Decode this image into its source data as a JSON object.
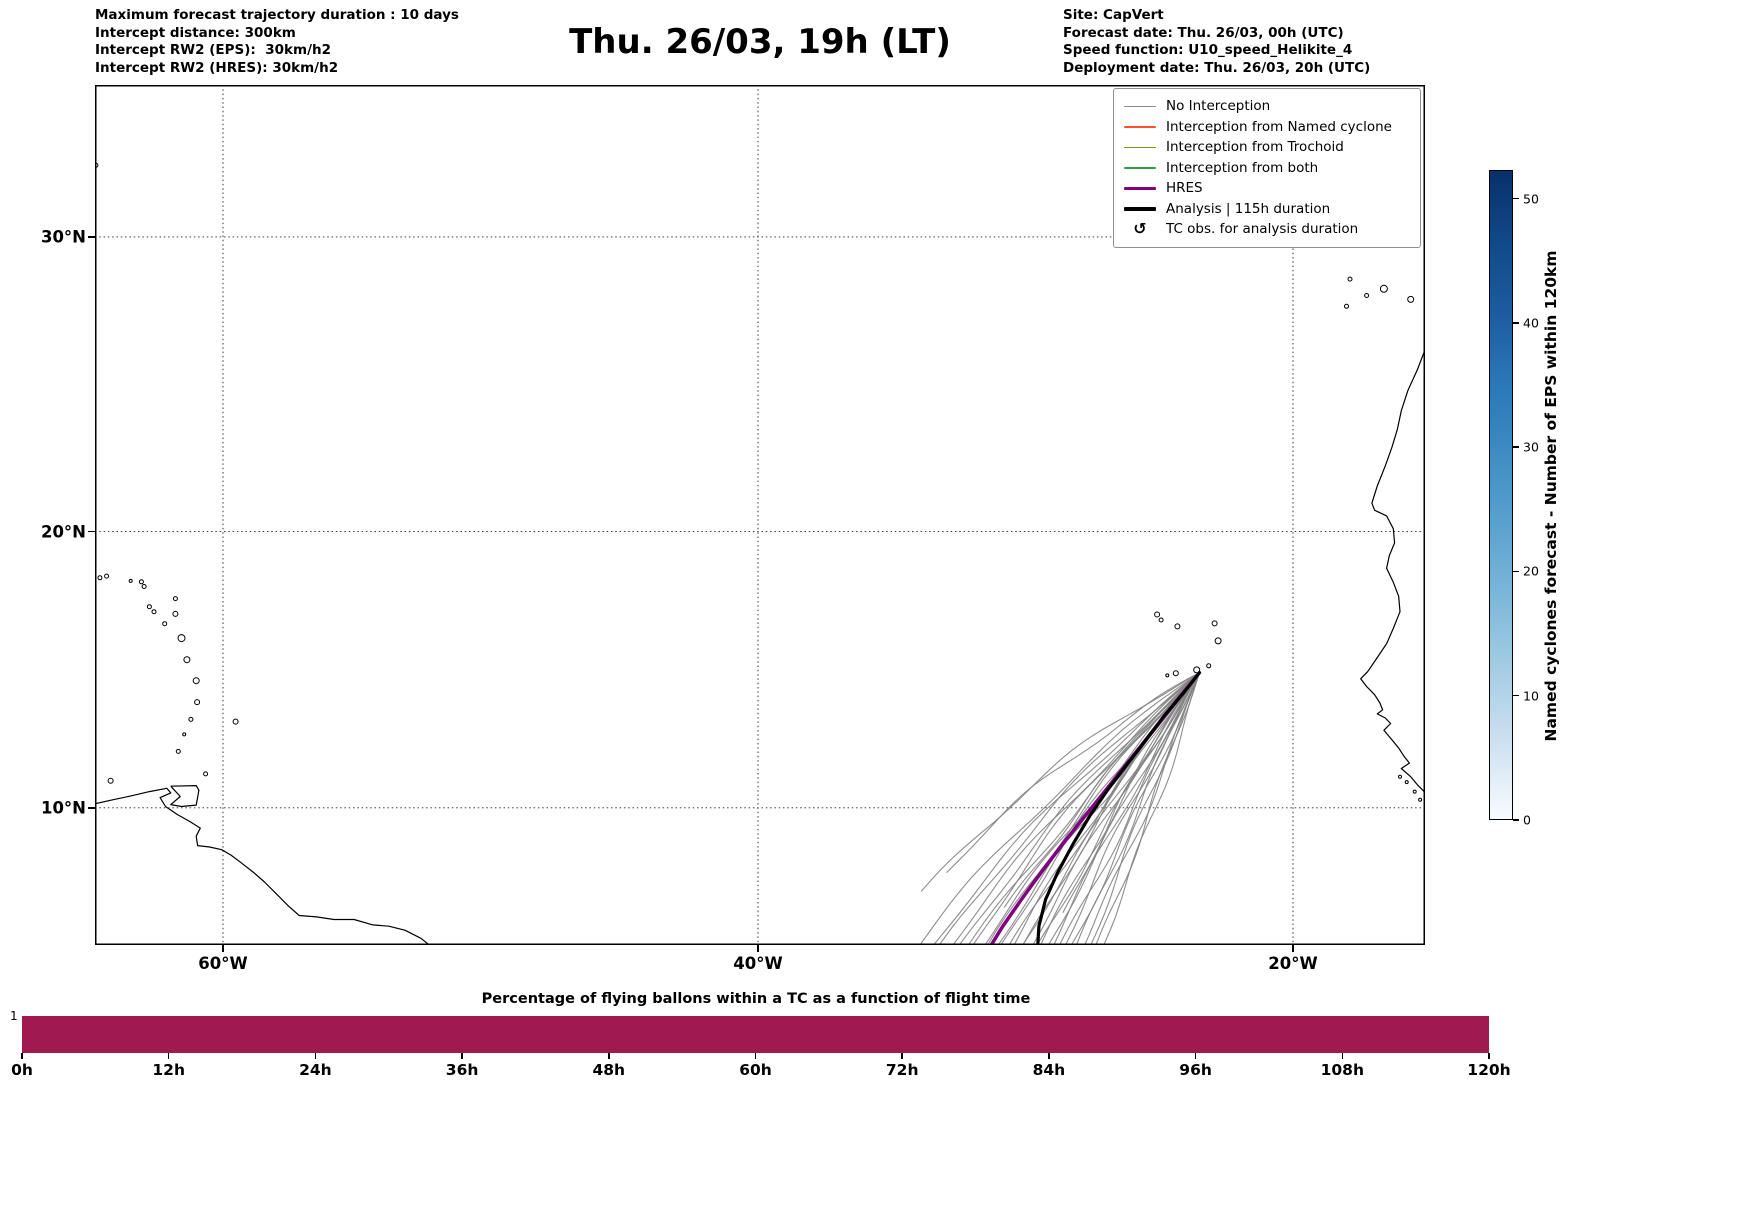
{
  "header": {
    "left_lines": [
      "Maximum forecast trajectory duration : 10 days",
      "Intercept distance: 300km",
      "Intercept RW2 (EPS):  30km/h2",
      "Intercept RW2 (HRES): 30km/h2"
    ],
    "title": "Thu. 26/03, 19h (LT)",
    "right_lines": [
      "Site: CapVert",
      "Forecast date: Thu. 26/03, 00h (UTC)",
      "Speed function: U10_speed_Helikite_4",
      "Deployment date: Thu. 26/03, 20h (UTC)"
    ]
  },
  "map": {
    "x_ticks": [
      {
        "label": "60°W",
        "lon": -60
      },
      {
        "label": "40°W",
        "lon": -40
      },
      {
        "label": "20°W",
        "lon": -20
      }
    ],
    "y_ticks": [
      {
        "label": "30°N",
        "lat": 30
      },
      {
        "label": "20°N",
        "lat": 20
      },
      {
        "label": "10°N",
        "lat": 10
      }
    ],
    "legend": [
      {
        "label": "No Interception",
        "color": "#8c8c8c",
        "lw": 1.5
      },
      {
        "label": "Interception from Named cyclone",
        "color": "#ff4f30",
        "lw": 1.5
      },
      {
        "label": "Interception from Trochoid",
        "color": "#8a8a23",
        "lw": 1.5
      },
      {
        "label": "Interception from both",
        "color": "#2e9e3e",
        "lw": 1.5
      },
      {
        "label": "HRES",
        "color": "#800080",
        "lw": 3.5
      },
      {
        "label": "Analysis | 115h duration",
        "color": "#000000",
        "lw": 3.5
      },
      {
        "label": "TC obs. for analysis duration",
        "symbol": "↺"
      }
    ]
  },
  "chart_data": {
    "type": "map-trajectories",
    "projection": "mercator",
    "map_extent": {
      "lon_min": -64.8,
      "lon_max": -15.1,
      "lat_min": 4.9,
      "lat_max": 34.9
    },
    "site": {
      "name": "CapVert",
      "lon": -23.5,
      "lat": 14.95
    },
    "trajectories": {
      "start": [
        -23.5,
        14.95
      ],
      "ensemble_color": "#828282",
      "n_ensemble": 33,
      "members": [
        [
          -34.6,
          4.0,
          1.35,
          0.0
        ],
        [
          -34.15,
          4.0,
          1.05,
          2.1
        ],
        [
          -33.75,
          4.1,
          1.2,
          4.2
        ],
        [
          -33.4,
          4.0,
          0.85,
          1.3
        ],
        [
          -33.05,
          4.05,
          0.95,
          3.4
        ],
        [
          -32.75,
          4.0,
          0.6,
          5.5
        ],
        [
          -32.45,
          4.15,
          1.0,
          2.6
        ],
        [
          -32.15,
          4.0,
          0.5,
          0.7
        ],
        [
          -31.9,
          4.05,
          0.8,
          4.8
        ],
        [
          -31.65,
          4.0,
          0.45,
          1.9
        ],
        [
          -31.4,
          4.1,
          0.7,
          3.0
        ],
        [
          -31.15,
          4.0,
          0.3,
          5.1
        ],
        [
          -30.9,
          4.05,
          0.62,
          0.2
        ],
        [
          -30.7,
          4.0,
          0.2,
          2.3
        ],
        [
          -30.5,
          4.1,
          0.5,
          4.4
        ],
        [
          -30.25,
          4.0,
          0.38,
          1.5
        ],
        [
          -30.05,
          4.05,
          0.12,
          3.6
        ],
        [
          -29.85,
          4.0,
          0.46,
          5.7
        ],
        [
          -29.6,
          4.1,
          0.08,
          2.8
        ],
        [
          -29.4,
          4.0,
          0.3,
          0.9
        ],
        [
          -29.15,
          4.05,
          -0.12,
          5.0
        ],
        [
          -28.95,
          4.0,
          0.22,
          2.0
        ],
        [
          -28.7,
          4.1,
          -0.2,
          3.1
        ],
        [
          -28.45,
          4.0,
          0.1,
          5.2
        ],
        [
          -28.2,
          4.05,
          -0.3,
          0.3
        ],
        [
          -27.95,
          4.0,
          0.02,
          2.4
        ],
        [
          -27.65,
          4.15,
          -0.16,
          4.5
        ],
        [
          -27.35,
          4.3,
          -0.28,
          1.6
        ],
        [
          -30.8,
          6.3,
          0.42,
          3.7
        ],
        [
          -29.9,
          6.9,
          -0.1,
          5.8
        ],
        [
          -28.6,
          6.1,
          0.3,
          2.9
        ],
        [
          -33.9,
          6.9,
          1.15,
          4.0
        ],
        [
          -32.95,
          7.6,
          0.95,
          1.1
        ]
      ],
      "hres": {
        "label": "HRES",
        "color": "#800080",
        "width": 3.5,
        "points": [
          [
            -23.5,
            14.95
          ],
          [
            -24.25,
            14.05
          ],
          [
            -25.1,
            13.0
          ],
          [
            -25.95,
            11.95
          ],
          [
            -26.8,
            10.9
          ],
          [
            -27.65,
            9.85
          ],
          [
            -28.5,
            8.8
          ],
          [
            -29.35,
            7.7
          ],
          [
            -30.15,
            6.6
          ],
          [
            -30.85,
            5.6
          ],
          [
            -31.4,
            4.7
          ],
          [
            -31.65,
            4.1
          ]
        ]
      },
      "analysis": {
        "label": "Analysis | 115h duration",
        "color": "#000000",
        "width": 3.2,
        "points": [
          [
            -23.5,
            14.95
          ],
          [
            -24.1,
            14.2
          ],
          [
            -24.8,
            13.4
          ],
          [
            -25.5,
            12.5
          ],
          [
            -26.2,
            11.6
          ],
          [
            -26.9,
            10.7
          ],
          [
            -27.6,
            9.7
          ],
          [
            -28.2,
            8.7
          ],
          [
            -28.8,
            7.6
          ],
          [
            -29.25,
            6.6
          ],
          [
            -29.5,
            5.6
          ],
          [
            -29.55,
            4.7
          ],
          [
            -29.55,
            4.2
          ]
        ]
      }
    },
    "geo": {
      "coastlines": [
        [
          [
            -64.8,
            10.15
          ],
          [
            -64.1,
            10.3
          ],
          [
            -63.4,
            10.45
          ],
          [
            -62.75,
            10.6
          ],
          [
            -62.1,
            10.72
          ],
          [
            -61.95,
            10.55
          ],
          [
            -62.35,
            10.38
          ],
          [
            -62.15,
            10.05
          ],
          [
            -61.7,
            9.75
          ],
          [
            -61.25,
            9.5
          ],
          [
            -60.85,
            9.25
          ],
          [
            -61.0,
            8.95
          ],
          [
            -60.95,
            8.6
          ],
          [
            -60.5,
            8.55
          ],
          [
            -60.05,
            8.45
          ],
          [
            -59.7,
            8.25
          ],
          [
            -59.3,
            7.95
          ],
          [
            -58.85,
            7.6
          ],
          [
            -58.45,
            7.25
          ],
          [
            -58.05,
            6.85
          ],
          [
            -57.55,
            6.35
          ],
          [
            -57.15,
            6.0
          ],
          [
            -56.5,
            5.95
          ],
          [
            -55.85,
            5.85
          ],
          [
            -55.1,
            5.85
          ],
          [
            -54.4,
            5.65
          ],
          [
            -53.8,
            5.6
          ],
          [
            -53.2,
            5.45
          ],
          [
            -52.6,
            5.15
          ],
          [
            -52.1,
            4.75
          ],
          [
            -51.7,
            4.35
          ],
          [
            -51.5,
            4.0
          ]
        ],
        [
          [
            -61.95,
            10.8
          ],
          [
            -61.0,
            10.82
          ],
          [
            -60.9,
            10.65
          ],
          [
            -61.0,
            10.1
          ],
          [
            -61.55,
            10.05
          ],
          [
            -61.95,
            10.12
          ],
          [
            -61.6,
            10.42
          ],
          [
            -61.95,
            10.8
          ]
        ],
        [
          [
            -15.05,
            26.3
          ],
          [
            -15.35,
            25.6
          ],
          [
            -15.7,
            24.9
          ],
          [
            -15.95,
            24.2
          ],
          [
            -16.1,
            23.55
          ],
          [
            -16.3,
            22.95
          ],
          [
            -16.55,
            22.3
          ],
          [
            -16.85,
            21.6
          ],
          [
            -17.05,
            21.0
          ],
          [
            -16.95,
            20.75
          ],
          [
            -16.5,
            20.55
          ],
          [
            -16.25,
            20.1
          ],
          [
            -16.2,
            19.6
          ],
          [
            -16.4,
            19.15
          ],
          [
            -16.5,
            18.7
          ],
          [
            -16.25,
            18.2
          ],
          [
            -16.05,
            17.7
          ],
          [
            -16.0,
            17.15
          ],
          [
            -16.25,
            16.55
          ],
          [
            -16.5,
            16.0
          ],
          [
            -16.85,
            15.5
          ],
          [
            -17.2,
            15.0
          ],
          [
            -17.47,
            14.73
          ],
          [
            -17.25,
            14.45
          ],
          [
            -16.95,
            14.15
          ],
          [
            -16.75,
            13.85
          ],
          [
            -16.65,
            13.6
          ],
          [
            -16.85,
            13.45
          ],
          [
            -16.55,
            13.3
          ],
          [
            -16.35,
            13.1
          ],
          [
            -16.6,
            12.85
          ],
          [
            -16.3,
            12.5
          ],
          [
            -16.05,
            12.2
          ],
          [
            -15.85,
            11.9
          ],
          [
            -15.65,
            11.65
          ],
          [
            -15.95,
            11.45
          ],
          [
            -15.6,
            11.15
          ],
          [
            -15.35,
            10.85
          ],
          [
            -15.1,
            10.6
          ]
        ]
      ],
      "islands": [
        [
          -64.75,
          32.3,
          2
        ],
        [
          -64.6,
          18.36,
          2
        ],
        [
          -64.35,
          18.42,
          2
        ],
        [
          -63.45,
          18.25,
          1.5
        ],
        [
          -63.05,
          18.22,
          2
        ],
        [
          -62.95,
          18.05,
          2
        ],
        [
          -62.75,
          17.33,
          2
        ],
        [
          -62.58,
          17.15,
          2
        ],
        [
          -61.78,
          17.62,
          2
        ],
        [
          -61.78,
          17.07,
          2.5
        ],
        [
          -62.18,
          16.72,
          2
        ],
        [
          -61.55,
          16.2,
          3.5
        ],
        [
          -61.35,
          15.42,
          3
        ],
        [
          -61.0,
          14.66,
          3
        ],
        [
          -60.97,
          13.88,
          2.5
        ],
        [
          -61.2,
          13.25,
          2
        ],
        [
          -61.45,
          12.7,
          1.5
        ],
        [
          -61.67,
          12.08,
          2
        ],
        [
          -59.53,
          13.17,
          2.5
        ],
        [
          -60.65,
          11.25,
          2
        ],
        [
          -64.2,
          11.0,
          2.5
        ],
        [
          -25.08,
          17.05,
          2.5
        ],
        [
          -24.93,
          16.85,
          2
        ],
        [
          -24.32,
          16.62,
          2.5
        ],
        [
          -22.93,
          16.73,
          2.5
        ],
        [
          -22.8,
          16.1,
          3
        ],
        [
          -23.15,
          15.2,
          2
        ],
        [
          -23.6,
          15.05,
          3
        ],
        [
          -24.38,
          14.93,
          2.5
        ],
        [
          -24.7,
          14.85,
          1.5
        ],
        [
          -18.0,
          27.72,
          2
        ],
        [
          -17.87,
          28.62,
          2
        ],
        [
          -17.25,
          28.08,
          2
        ],
        [
          -16.6,
          28.3,
          3.5
        ],
        [
          -15.6,
          27.95,
          3
        ],
        [
          -16.0,
          11.15,
          1.5
        ],
        [
          -15.75,
          10.95,
          1.5
        ],
        [
          -15.45,
          10.6,
          1.5
        ],
        [
          -15.25,
          10.3,
          1.5
        ]
      ]
    },
    "colorbar": {
      "label": "Named cyclones forecast - Number of EPS within 120km",
      "ticks": [
        0,
        10,
        20,
        30,
        40,
        50
      ],
      "vmin": 0,
      "vmax": 52.3,
      "colormap": "Blues",
      "color_low": "#f7fbff",
      "color_high": "#08306b"
    },
    "bottom_chart": {
      "title": "Percentage of flying ballons within a TC as a function of flight time",
      "type": "bar",
      "x_tick_labels": [
        "0h",
        "12h",
        "24h",
        "36h",
        "48h",
        "60h",
        "72h",
        "84h",
        "96h",
        "108h",
        "120h"
      ],
      "x_range_hours": [
        0,
        120
      ],
      "constant_value": 1,
      "y_tick_label": "1",
      "bar_color": "#a01a50"
    }
  }
}
